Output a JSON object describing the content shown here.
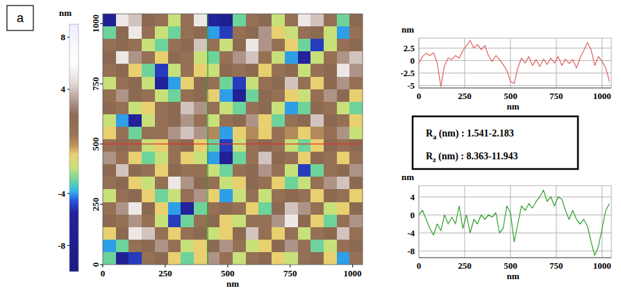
{
  "panel_label": "a",
  "roughness": [
    {
      "symbol": "R",
      "subscript": "a",
      "text": " (nm) : 1.541-2.183"
    },
    {
      "symbol": "R",
      "subscript": "z",
      "text": " (nm) : 8.363-11.943"
    }
  ],
  "chart_data": [
    {
      "type": "heatmap",
      "xlabel": "nm",
      "xlim": [
        0,
        1040
      ],
      "ylim": [
        0,
        1040
      ],
      "xticks": [
        0,
        250,
        500,
        750,
        1000
      ],
      "yticks": [
        0,
        250,
        500,
        750,
        1000
      ],
      "color_range": [
        -10,
        9
      ],
      "color_ticks": [
        8,
        4,
        -4,
        -8
      ],
      "color_label": "nm",
      "cross_x": 420,
      "cross_y": 500,
      "cells": [
        [
          -7,
          5,
          4,
          2,
          1,
          -2,
          1,
          5,
          -6,
          -8,
          -3,
          1,
          2,
          -2,
          1,
          5,
          4,
          1,
          -3,
          2
        ],
        [
          -3,
          2,
          5,
          1,
          -2,
          -3,
          1,
          2,
          -4,
          -5,
          1,
          2,
          3,
          -1,
          -2,
          1,
          2,
          -2,
          -4,
          1
        ],
        [
          1,
          2,
          1,
          -2,
          -3,
          1,
          2,
          4,
          1,
          -2,
          2,
          5,
          3,
          1,
          -1,
          -3,
          -5,
          -2,
          1,
          2
        ],
        [
          2,
          5,
          3,
          1,
          -1,
          2,
          1,
          -2,
          -3,
          1,
          3,
          4,
          1,
          -2,
          -4,
          -6,
          -2,
          1,
          3,
          4
        ],
        [
          1,
          2,
          -1,
          -3,
          -5,
          -2,
          1,
          -1,
          -2,
          2,
          1,
          2,
          -1,
          1,
          2,
          -2,
          1,
          2,
          5,
          3
        ],
        [
          -2,
          1,
          2,
          -2,
          -6,
          -4,
          -1,
          2,
          1,
          -3,
          -5,
          -2,
          1,
          2,
          4,
          1,
          -1,
          2,
          3,
          1
        ],
        [
          1,
          3,
          2,
          1,
          -2,
          -3,
          1,
          2,
          -1,
          -4,
          -7,
          -3,
          2,
          1,
          -1,
          -2,
          1,
          3,
          2,
          -1
        ],
        [
          2,
          1,
          -2,
          -1,
          1,
          2,
          4,
          3,
          1,
          -2,
          -3,
          1,
          2,
          -2,
          -4,
          -3,
          2,
          1,
          -2,
          -3
        ],
        [
          -2,
          -4,
          -6,
          -2,
          1,
          2,
          3,
          1,
          -2,
          1,
          2,
          3,
          -1,
          -3,
          1,
          2,
          4,
          2,
          1,
          -1
        ],
        [
          -1,
          1,
          -3,
          1,
          1,
          3,
          4,
          3,
          0,
          -4,
          -1,
          0,
          -1,
          1,
          0,
          -1,
          0,
          1,
          3,
          -2
        ],
        [
          1,
          2,
          1,
          -2,
          -1,
          1,
          2,
          -1,
          -3,
          -5,
          -2,
          1,
          2,
          1,
          -2,
          -3,
          -1,
          2,
          1,
          2
        ],
        [
          3,
          1,
          -1,
          -3,
          -2,
          1,
          -1,
          -2,
          -4,
          -7,
          -3,
          1,
          4,
          2,
          1,
          -1,
          2,
          1,
          -1,
          1
        ],
        [
          2,
          4,
          2,
          1,
          -1,
          2,
          1,
          1,
          -2,
          -3,
          1,
          2,
          3,
          1,
          -2,
          -5,
          -3,
          1,
          2,
          3
        ],
        [
          1,
          2,
          -1,
          -2,
          1,
          5,
          3,
          2,
          1,
          -2,
          -1,
          2,
          1,
          -1,
          -3,
          -2,
          1,
          3,
          4,
          2
        ],
        [
          -2,
          1,
          2,
          -1,
          -3,
          -2,
          1,
          3,
          -1,
          -4,
          -2,
          1,
          -2,
          1,
          2,
          1,
          -1,
          2,
          1,
          -1
        ],
        [
          1,
          3,
          5,
          2,
          -1,
          -4,
          -6,
          -3,
          1,
          2,
          1,
          -1,
          -3,
          2,
          4,
          3,
          1,
          -2,
          -1,
          2
        ],
        [
          2,
          1,
          3,
          1,
          -2,
          -5,
          -3,
          1,
          2,
          -1,
          -2,
          1,
          1,
          3,
          5,
          2,
          -1,
          -3,
          1,
          3
        ],
        [
          -1,
          2,
          5,
          4,
          1,
          -1,
          1,
          2,
          -2,
          -1,
          2,
          4,
          1,
          -1,
          1,
          -2,
          1,
          2,
          4,
          1
        ],
        [
          -4,
          -3,
          1,
          2,
          3,
          1,
          -2,
          -1,
          2,
          3,
          1,
          -2,
          -1,
          2,
          3,
          1,
          -3,
          -2,
          1,
          2
        ],
        [
          -3,
          -7,
          -5,
          1,
          2,
          -1,
          -3,
          -1,
          3,
          1,
          -2,
          1,
          2,
          -1,
          -2,
          1,
          2,
          -1,
          -4,
          1
        ]
      ]
    },
    {
      "type": "line",
      "xlabel": "nm",
      "ylabel": "nm",
      "color": "#e06060",
      "grid": true,
      "xlim": [
        0,
        1050
      ],
      "ylim": [
        -5.5,
        4.5
      ],
      "xticks": [
        0,
        250,
        500,
        750,
        1000
      ],
      "yticks": [
        2.5,
        0,
        -2.5,
        -5
      ],
      "x": [
        0,
        20,
        40,
        60,
        80,
        100,
        120,
        140,
        160,
        180,
        200,
        220,
        240,
        260,
        280,
        300,
        320,
        340,
        360,
        380,
        400,
        420,
        440,
        460,
        480,
        500,
        520,
        540,
        560,
        580,
        600,
        620,
        640,
        660,
        680,
        700,
        720,
        740,
        760,
        780,
        800,
        820,
        840,
        860,
        880,
        900,
        920,
        940,
        960,
        980,
        1000,
        1020,
        1040
      ],
      "values": [
        -0.5,
        0.8,
        1.5,
        1.0,
        1.6,
        -0.5,
        -5.2,
        -1.0,
        0.5,
        0.2,
        1.0,
        0.5,
        2.0,
        3.0,
        4.0,
        2.5,
        3.2,
        2.2,
        3.0,
        1.0,
        -0.2,
        1.0,
        0.2,
        -0.8,
        -2.0,
        -4.2,
        -4.6,
        -1.5,
        0.5,
        -0.5,
        0.8,
        -1.0,
        0.2,
        -1.2,
        0.3,
        -0.8,
        0.5,
        -0.5,
        0.8,
        -1.0,
        0.3,
        -0.6,
        0.2,
        -1.5,
        0.5,
        2.0,
        3.6,
        2.2,
        -1.0,
        0.8,
        -0.2,
        -1.5,
        -4.2
      ]
    },
    {
      "type": "line",
      "xlabel": "nm",
      "ylabel": "nm",
      "color": "#2ea02e",
      "grid": true,
      "xlim": [
        0,
        1050
      ],
      "ylim": [
        -9.5,
        6.5
      ],
      "xticks": [
        0,
        250,
        500,
        750,
        1000
      ],
      "yticks": [
        4,
        0,
        -4,
        -8
      ],
      "x": [
        0,
        20,
        40,
        60,
        80,
        100,
        120,
        140,
        160,
        180,
        200,
        220,
        240,
        260,
        280,
        300,
        320,
        340,
        360,
        380,
        400,
        420,
        440,
        460,
        480,
        500,
        520,
        540,
        560,
        580,
        600,
        620,
        640,
        660,
        680,
        700,
        720,
        740,
        760,
        780,
        800,
        820,
        840,
        860,
        880,
        900,
        920,
        940,
        960,
        980,
        1000,
        1020,
        1040
      ],
      "values": [
        0,
        1,
        -1,
        -3,
        -4.5,
        -2,
        -3.5,
        0,
        -2,
        -0.5,
        -2,
        2,
        -3,
        0,
        -4,
        -1,
        -2,
        0,
        -1,
        0,
        -0.5,
        0.5,
        -4,
        -3,
        2,
        0.5,
        -6,
        -2,
        2,
        1,
        2.5,
        1.5,
        3,
        4,
        5.5,
        3,
        4,
        2,
        4,
        3.5,
        1,
        -1,
        1,
        -1,
        -2,
        -1,
        -2.5,
        -6,
        -9,
        -7,
        -3,
        1,
        2.5
      ]
    }
  ]
}
